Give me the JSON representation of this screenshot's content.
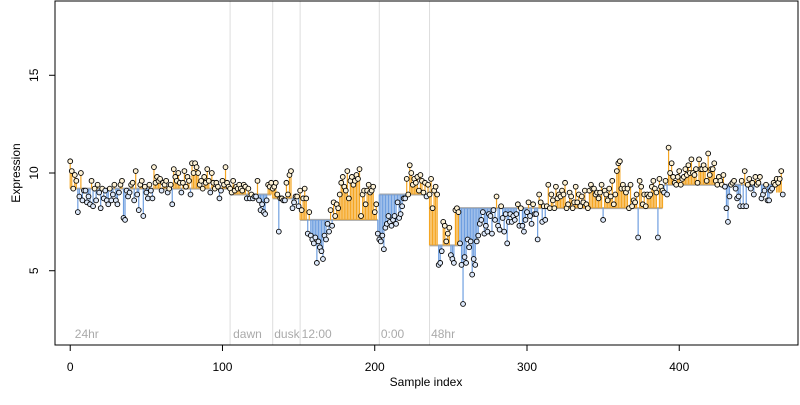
{
  "chart_data": {
    "type": "scatter",
    "title": "",
    "xlabel": "Sample index",
    "ylabel": "Expression",
    "xlim": [
      -10,
      478
    ],
    "ylim": [
      1.2,
      18.8
    ],
    "xticks": [
      0,
      100,
      200,
      300,
      400
    ],
    "yticks": [
      5,
      10,
      15
    ],
    "grid": false,
    "annotations": [
      {
        "label": "24hr",
        "x": 3,
        "divider": null
      },
      {
        "label": "dawn",
        "x": 107,
        "divider": 105
      },
      {
        "label": "dusk",
        "x": 134,
        "divider": 133
      },
      {
        "label": "12:00",
        "x": 152,
        "divider": 151
      },
      {
        "label": "0:00",
        "x": 204,
        "divider": 203
      },
      {
        "label": "48hr",
        "x": 237,
        "divider": 236
      }
    ],
    "segments": [
      {
        "start": 0,
        "end": 104,
        "baseline": 9.2
      },
      {
        "start": 105,
        "end": 132,
        "baseline": 8.9
      },
      {
        "start": 133,
        "end": 150,
        "baseline": 8.7
      },
      {
        "start": 151,
        "end": 202,
        "baseline": 7.6
      },
      {
        "start": 203,
        "end": 235,
        "baseline": 8.9
      },
      {
        "start": 236,
        "end": 255,
        "baseline": 6.3
      },
      {
        "start": 256,
        "end": 389,
        "baseline": 8.2
      },
      {
        "start": 390,
        "end": 463,
        "baseline": 9.4
      }
    ],
    "series_colors": {
      "above": "#f5a623",
      "below": "#6f9fe0",
      "baseline": "#aaaaaa",
      "divider": "#dddddd"
    },
    "values": [
      10.6,
      10.1,
      9.2,
      9.9,
      9.6,
      8.0,
      8.8,
      10.0,
      8.6,
      9.1,
      9.1,
      8.5,
      8.8,
      8.4,
      9.6,
      8.3,
      9.2,
      8.6,
      9.4,
      9.0,
      8.2,
      9.2,
      8.7,
      9.1,
      8.6,
      8.4,
      9.2,
      8.6,
      8.9,
      9.4,
      8.6,
      8.4,
      9.0,
      9.4,
      9.6,
      7.7,
      7.6,
      9.1,
      8.8,
      9.0,
      9.4,
      9.5,
      8.6,
      10.1,
      8.9,
      8.1,
      9.4,
      9.6,
      7.8,
      9.3,
      9.0,
      8.7,
      9.4,
      9.1,
      8.7,
      10.3,
      9.5,
      9.8,
      9.6,
      9.7,
      9.1,
      9.5,
      9.4,
      9.6,
      9.0,
      9.2,
      9.4,
      8.4,
      10.2,
      9.8,
      9.6,
      10.0,
      9.5,
      9.0,
      9.5,
      10.1,
      9.3,
      9.8,
      9.6,
      8.9,
      10.5,
      10.0,
      10.5,
      10.3,
      10.0,
      9.4,
      9.6,
      9.2,
      9.8,
      9.5,
      10.2,
      9.6,
      9.0,
      10.0,
      9.5,
      9.2,
      9.5,
      9.3,
      8.7,
      9.1,
      9.6,
      9.4,
      10.3,
      9.5,
      9.3,
      9.2,
      9.0,
      9.6,
      9.1,
      9.3,
      9.2,
      9.4,
      9.2,
      9.1,
      9.4,
      9.3,
      8.7,
      9.2,
      8.7,
      8.9,
      8.7,
      8.8,
      8.8,
      9.6,
      8.6,
      8.1,
      8.4,
      8.0,
      7.9,
      8.6,
      9.4,
      9.3,
      9.5,
      9.2,
      9.3,
      9.5,
      8.9,
      7.0,
      8.7,
      8.7,
      8.6,
      8.6,
      9.5,
      8.9,
      9.9,
      10.1,
      8.2,
      8.5,
      8.8,
      8.8,
      8.3,
      9.1,
      8.1,
      8.7,
      9.2,
      8.7,
      6.9,
      8.0,
      6.8,
      6.6,
      6.4,
      6.7,
      5.4,
      6.5,
      6.2,
      6.0,
      5.6,
      6.8,
      6.6,
      7.4,
      7.0,
      8.1,
      7.3,
      8.5,
      7.8,
      8.4,
      8.2,
      8.9,
      9.5,
      9.8,
      9.3,
      9.1,
      10.1,
      8.7,
      9.6,
      9.8,
      9.4,
      9.6,
      9.9,
      9.7,
      10.2,
      7.8,
      8.9,
      9.1,
      8.4,
      9.1,
      9.4,
      9.0,
      9.1,
      9.3,
      8.0,
      8.4,
      6.9,
      6.6,
      6.5,
      6.8,
      6.1,
      7.2,
      7.4,
      7.8,
      7.5,
      7.3,
      7.6,
      7.8,
      7.4,
      8.5,
      7.7,
      7.9,
      8.3,
      8.7,
      8.7,
      9.7,
      8.9,
      10.4,
      10.0,
      9.4,
      9.7,
      9.5,
      9.8,
      9.1,
      9.9,
      9.6,
      9.0,
      9.5,
      8.8,
      9.4,
      8.9,
      9.7,
      8.2,
      9.1,
      9.3,
      8.9,
      5.3,
      5.4,
      6.0,
      7.5,
      7.3,
      6.5,
      6.9,
      7.2,
      5.8,
      5.6,
      5.4,
      8.1,
      8.2,
      8.0,
      6.4,
      5.3,
      3.3,
      5.7,
      5.4,
      6.6,
      6.2,
      6.5,
      4.8,
      5.6,
      5.3,
      6.5,
      6.8,
      7.4,
      7.6,
      8.0,
      6.9,
      7.3,
      7.0,
      7.9,
      7.8,
      6.9,
      8.1,
      7.6,
      8.8,
      7.3,
      7.1,
      8.3,
      7.7,
      7.0,
      7.9,
      6.4,
      7.5,
      7.9,
      7.5,
      7.8,
      7.6,
      7.9,
      8.4,
      7.3,
      8.2,
      7.3,
      7.0,
      7.6,
      8.0,
      8.5,
      7.8,
      7.4,
      8.4,
      7.9,
      7.9,
      6.6,
      8.9,
      8.5,
      7.5,
      8.3,
      7.6,
      8.3,
      9.4,
      8.2,
      8.9,
      8.6,
      8.2,
      9.3,
      8.7,
      8.9,
      8.8,
      9.1,
      8.9,
      9.5,
      8.2,
      8.4,
      9.0,
      8.8,
      8.2,
      8.5,
      9.3,
      8.5,
      8.9,
      8.3,
      8.8,
      8.5,
      9.1,
      8.4,
      8.2,
      9.1,
      9.4,
      9.2,
      9.2,
      8.9,
      9.0,
      8.7,
      9.0,
      9.4,
      7.6,
      9.1,
      8.9,
      8.6,
      9.2,
      8.8,
      9.6,
      8.4,
      8.9,
      10.1,
      10.5,
      10.6,
      9.2,
      9.4,
      9.2,
      9.0,
      9.2,
      8.2,
      9.4,
      8.3,
      8.6,
      8.5,
      8.9,
      6.7,
      9.6,
      9.3,
      8.4,
      8.9,
      8.3,
      8.9,
      8.8,
      8.9,
      9.3,
      9.6,
      9.2,
      9.0,
      6.7,
      9.7,
      9.3,
      9.1,
      9.0,
      9.6,
      8.9,
      11.3,
      10.0,
      10.5,
      9.8,
      9.5,
      9.4,
      9.8,
      10.1,
      9.4,
      9.7,
      9.8,
      10.2,
      9.9,
      10.4,
      10.0,
      10.7,
      10.0,
      9.9,
      10.2,
      9.5,
      10.7,
      10.2,
      10.2,
      10.4,
      10.2,
      9.6,
      11.0,
      9.9,
      10.2,
      10.2,
      10.5,
      9.6,
      9.4,
      9.8,
      9.6,
      9.4,
      9.9,
      9.3,
      8.2,
      7.5,
      8.8,
      9.4,
      9.5,
      9.6,
      9.2,
      8.7,
      8.8,
      8.3,
      9.6,
      8.3,
      10.1,
      8.3,
      9.4,
      9.7,
      9.2,
      9.5,
      8.9,
      9.8,
      9.4,
      9.5,
      9.8,
      8.7,
      8.9,
      9.1,
      9.4,
      8.6,
      8.6,
      9.1,
      9.2,
      9.5,
      9.4,
      9.7,
      9.5,
      9.7,
      10.1,
      8.9
    ]
  }
}
